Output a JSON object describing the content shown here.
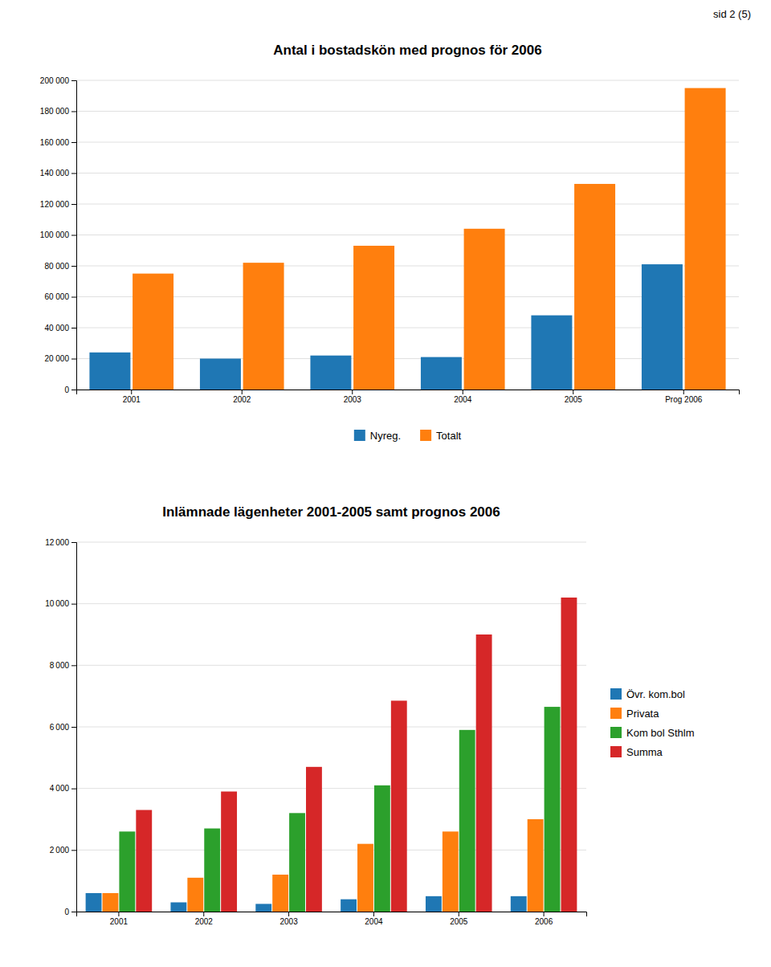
{
  "chart_data": [
    {
      "type": "bar",
      "title": "Antal i bostadskön med prognos för 2006",
      "annotations": [
        "sid 2 (5)"
      ],
      "categories": [
        "2001",
        "2002",
        "2003",
        "2004",
        "2005",
        "Prog 2006"
      ],
      "series": [
        {
          "name": "Nyreg.",
          "values": [
            24000,
            20000,
            22000,
            21000,
            48000,
            81000
          ]
        },
        {
          "name": "Totalt",
          "values": [
            75000,
            82000,
            93000,
            104000,
            133000,
            195000
          ]
        }
      ],
      "ylim": [
        0,
        200000
      ],
      "yticks": [
        0,
        {
          "value": 20000,
          "label": "20 000"
        },
        {
          "value": 40000,
          "label": "40 000"
        },
        {
          "value": 60000,
          "label": "60 000"
        },
        {
          "value": 80000,
          "label": "80 000"
        },
        {
          "value": 100000,
          "label": "100 000"
        },
        {
          "value": 120000,
          "label": "120 000"
        },
        {
          "value": 140000,
          "label": "140 000"
        },
        {
          "value": 160000,
          "label": "160 000"
        },
        {
          "value": 180000,
          "label": "180 000"
        },
        {
          "value": 200000,
          "label": "200 000"
        }
      ],
      "grid": true,
      "legend": "bottom"
    },
    {
      "type": "bar",
      "title": "Inlämnade lägenheter 2001-2005 samt prognos 2006",
      "categories": [
        "2001",
        "2002",
        "2003",
        "2004",
        "2005",
        "2006"
      ],
      "series": [
        {
          "name": "Övr. kom.bol",
          "values": [
            600,
            300,
            250,
            400,
            500,
            500
          ]
        },
        {
          "name": "Privata",
          "values": [
            600,
            1100,
            1200,
            2200,
            2600,
            3000
          ]
        },
        {
          "name": "Kom bol Sthlm",
          "values": [
            2600,
            2700,
            3200,
            4100,
            5900,
            6650
          ]
        },
        {
          "name": "Summa",
          "values": [
            3300,
            3900,
            4700,
            6850,
            9000,
            10200
          ]
        }
      ],
      "ylim": [
        0,
        12000
      ],
      "yticks": [
        0,
        {
          "value": 2000,
          "label": "2 000"
        },
        {
          "value": 4000,
          "label": "4 000"
        },
        {
          "value": 6000,
          "label": "6 000"
        },
        {
          "value": 8000,
          "label": "8 000"
        },
        {
          "value": 10000,
          "label": "10 000"
        },
        {
          "value": 12000,
          "label": "12 000"
        }
      ],
      "grid": true,
      "legend": "right"
    }
  ]
}
